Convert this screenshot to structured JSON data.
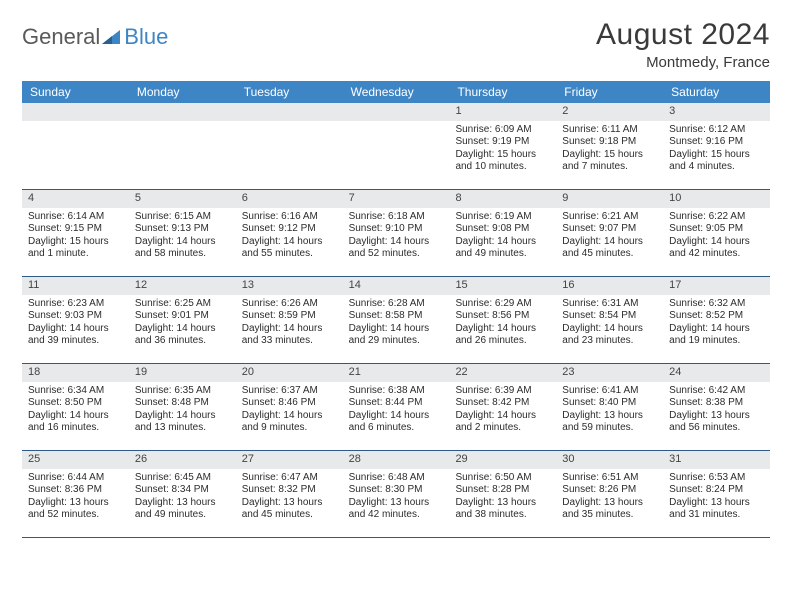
{
  "logo": {
    "text1": "General",
    "text2": "Blue"
  },
  "title": "August 2024",
  "location": "Montmedy, France",
  "header_bg": "#3e85c6",
  "header_text_color": "#ffffff",
  "daynum_bg": "#e7e9ea",
  "week_border": "#2f5a88",
  "day_names": [
    "Sunday",
    "Monday",
    "Tuesday",
    "Wednesday",
    "Thursday",
    "Friday",
    "Saturday"
  ],
  "weeks": [
    [
      null,
      null,
      null,
      null,
      {
        "n": "1",
        "sr": "Sunrise: 6:09 AM",
        "ss": "Sunset: 9:19 PM",
        "d1": "Daylight: 15 hours",
        "d2": "and 10 minutes."
      },
      {
        "n": "2",
        "sr": "Sunrise: 6:11 AM",
        "ss": "Sunset: 9:18 PM",
        "d1": "Daylight: 15 hours",
        "d2": "and 7 minutes."
      },
      {
        "n": "3",
        "sr": "Sunrise: 6:12 AM",
        "ss": "Sunset: 9:16 PM",
        "d1": "Daylight: 15 hours",
        "d2": "and 4 minutes."
      }
    ],
    [
      {
        "n": "4",
        "sr": "Sunrise: 6:14 AM",
        "ss": "Sunset: 9:15 PM",
        "d1": "Daylight: 15 hours",
        "d2": "and 1 minute."
      },
      {
        "n": "5",
        "sr": "Sunrise: 6:15 AM",
        "ss": "Sunset: 9:13 PM",
        "d1": "Daylight: 14 hours",
        "d2": "and 58 minutes."
      },
      {
        "n": "6",
        "sr": "Sunrise: 6:16 AM",
        "ss": "Sunset: 9:12 PM",
        "d1": "Daylight: 14 hours",
        "d2": "and 55 minutes."
      },
      {
        "n": "7",
        "sr": "Sunrise: 6:18 AM",
        "ss": "Sunset: 9:10 PM",
        "d1": "Daylight: 14 hours",
        "d2": "and 52 minutes."
      },
      {
        "n": "8",
        "sr": "Sunrise: 6:19 AM",
        "ss": "Sunset: 9:08 PM",
        "d1": "Daylight: 14 hours",
        "d2": "and 49 minutes."
      },
      {
        "n": "9",
        "sr": "Sunrise: 6:21 AM",
        "ss": "Sunset: 9:07 PM",
        "d1": "Daylight: 14 hours",
        "d2": "and 45 minutes."
      },
      {
        "n": "10",
        "sr": "Sunrise: 6:22 AM",
        "ss": "Sunset: 9:05 PM",
        "d1": "Daylight: 14 hours",
        "d2": "and 42 minutes."
      }
    ],
    [
      {
        "n": "11",
        "sr": "Sunrise: 6:23 AM",
        "ss": "Sunset: 9:03 PM",
        "d1": "Daylight: 14 hours",
        "d2": "and 39 minutes."
      },
      {
        "n": "12",
        "sr": "Sunrise: 6:25 AM",
        "ss": "Sunset: 9:01 PM",
        "d1": "Daylight: 14 hours",
        "d2": "and 36 minutes."
      },
      {
        "n": "13",
        "sr": "Sunrise: 6:26 AM",
        "ss": "Sunset: 8:59 PM",
        "d1": "Daylight: 14 hours",
        "d2": "and 33 minutes."
      },
      {
        "n": "14",
        "sr": "Sunrise: 6:28 AM",
        "ss": "Sunset: 8:58 PM",
        "d1": "Daylight: 14 hours",
        "d2": "and 29 minutes."
      },
      {
        "n": "15",
        "sr": "Sunrise: 6:29 AM",
        "ss": "Sunset: 8:56 PM",
        "d1": "Daylight: 14 hours",
        "d2": "and 26 minutes."
      },
      {
        "n": "16",
        "sr": "Sunrise: 6:31 AM",
        "ss": "Sunset: 8:54 PM",
        "d1": "Daylight: 14 hours",
        "d2": "and 23 minutes."
      },
      {
        "n": "17",
        "sr": "Sunrise: 6:32 AM",
        "ss": "Sunset: 8:52 PM",
        "d1": "Daylight: 14 hours",
        "d2": "and 19 minutes."
      }
    ],
    [
      {
        "n": "18",
        "sr": "Sunrise: 6:34 AM",
        "ss": "Sunset: 8:50 PM",
        "d1": "Daylight: 14 hours",
        "d2": "and 16 minutes."
      },
      {
        "n": "19",
        "sr": "Sunrise: 6:35 AM",
        "ss": "Sunset: 8:48 PM",
        "d1": "Daylight: 14 hours",
        "d2": "and 13 minutes."
      },
      {
        "n": "20",
        "sr": "Sunrise: 6:37 AM",
        "ss": "Sunset: 8:46 PM",
        "d1": "Daylight: 14 hours",
        "d2": "and 9 minutes."
      },
      {
        "n": "21",
        "sr": "Sunrise: 6:38 AM",
        "ss": "Sunset: 8:44 PM",
        "d1": "Daylight: 14 hours",
        "d2": "and 6 minutes."
      },
      {
        "n": "22",
        "sr": "Sunrise: 6:39 AM",
        "ss": "Sunset: 8:42 PM",
        "d1": "Daylight: 14 hours",
        "d2": "and 2 minutes."
      },
      {
        "n": "23",
        "sr": "Sunrise: 6:41 AM",
        "ss": "Sunset: 8:40 PM",
        "d1": "Daylight: 13 hours",
        "d2": "and 59 minutes."
      },
      {
        "n": "24",
        "sr": "Sunrise: 6:42 AM",
        "ss": "Sunset: 8:38 PM",
        "d1": "Daylight: 13 hours",
        "d2": "and 56 minutes."
      }
    ],
    [
      {
        "n": "25",
        "sr": "Sunrise: 6:44 AM",
        "ss": "Sunset: 8:36 PM",
        "d1": "Daylight: 13 hours",
        "d2": "and 52 minutes."
      },
      {
        "n": "26",
        "sr": "Sunrise: 6:45 AM",
        "ss": "Sunset: 8:34 PM",
        "d1": "Daylight: 13 hours",
        "d2": "and 49 minutes."
      },
      {
        "n": "27",
        "sr": "Sunrise: 6:47 AM",
        "ss": "Sunset: 8:32 PM",
        "d1": "Daylight: 13 hours",
        "d2": "and 45 minutes."
      },
      {
        "n": "28",
        "sr": "Sunrise: 6:48 AM",
        "ss": "Sunset: 8:30 PM",
        "d1": "Daylight: 13 hours",
        "d2": "and 42 minutes."
      },
      {
        "n": "29",
        "sr": "Sunrise: 6:50 AM",
        "ss": "Sunset: 8:28 PM",
        "d1": "Daylight: 13 hours",
        "d2": "and 38 minutes."
      },
      {
        "n": "30",
        "sr": "Sunrise: 6:51 AM",
        "ss": "Sunset: 8:26 PM",
        "d1": "Daylight: 13 hours",
        "d2": "and 35 minutes."
      },
      {
        "n": "31",
        "sr": "Sunrise: 6:53 AM",
        "ss": "Sunset: 8:24 PM",
        "d1": "Daylight: 13 hours",
        "d2": "and 31 minutes."
      }
    ]
  ]
}
